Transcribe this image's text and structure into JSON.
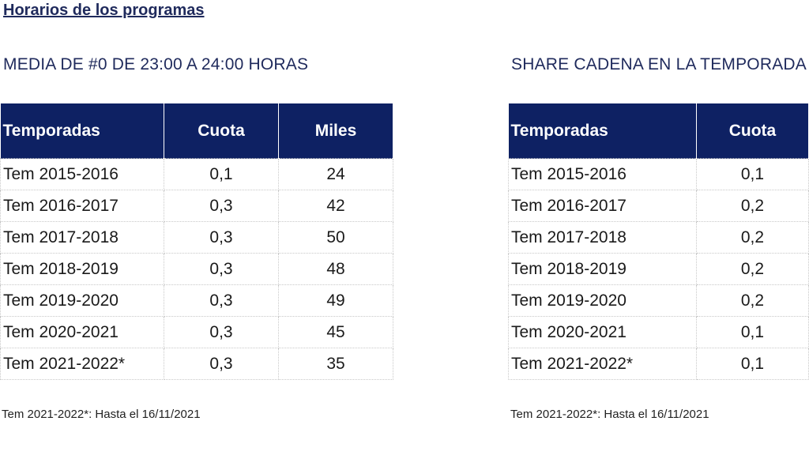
{
  "page_title": "Horarios de los programas",
  "left": {
    "title": "MEDIA DE #0 DE 23:00 A 24:00 HORAS",
    "headers": [
      "Temporadas",
      "Cuota",
      "Miles"
    ],
    "rows": [
      [
        "Tem 2015-2016",
        "0,1",
        "24"
      ],
      [
        "Tem 2016-2017",
        "0,3",
        "42"
      ],
      [
        "Tem 2017-2018",
        "0,3",
        "50"
      ],
      [
        "Tem 2018-2019",
        "0,3",
        "48"
      ],
      [
        "Tem 2019-2020",
        "0,3",
        "49"
      ],
      [
        "Tem 2020-2021",
        "0,3",
        "45"
      ],
      [
        "Tem 2021-2022*",
        "0,3",
        "35"
      ]
    ],
    "footnote": "Tem 2021-2022*: Hasta el 16/11/2021"
  },
  "right": {
    "title": "SHARE CADENA EN LA TEMPORADA",
    "headers": [
      "Temporadas",
      "Cuota"
    ],
    "rows": [
      [
        "Tem 2015-2016",
        "0,1"
      ],
      [
        "Tem 2016-2017",
        "0,2"
      ],
      [
        "Tem 2017-2018",
        "0,2"
      ],
      [
        "Tem 2018-2019",
        "0,2"
      ],
      [
        "Tem 2019-2020",
        "0,2"
      ],
      [
        "Tem 2020-2021",
        "0,1"
      ],
      [
        "Tem 2021-2022*",
        "0,1"
      ]
    ],
    "footnote": "Tem 2021-2022*: Hasta el 16/11/2021"
  },
  "colors": {
    "header_bg": "#0e2163",
    "title_text": "#1f2a5c"
  }
}
